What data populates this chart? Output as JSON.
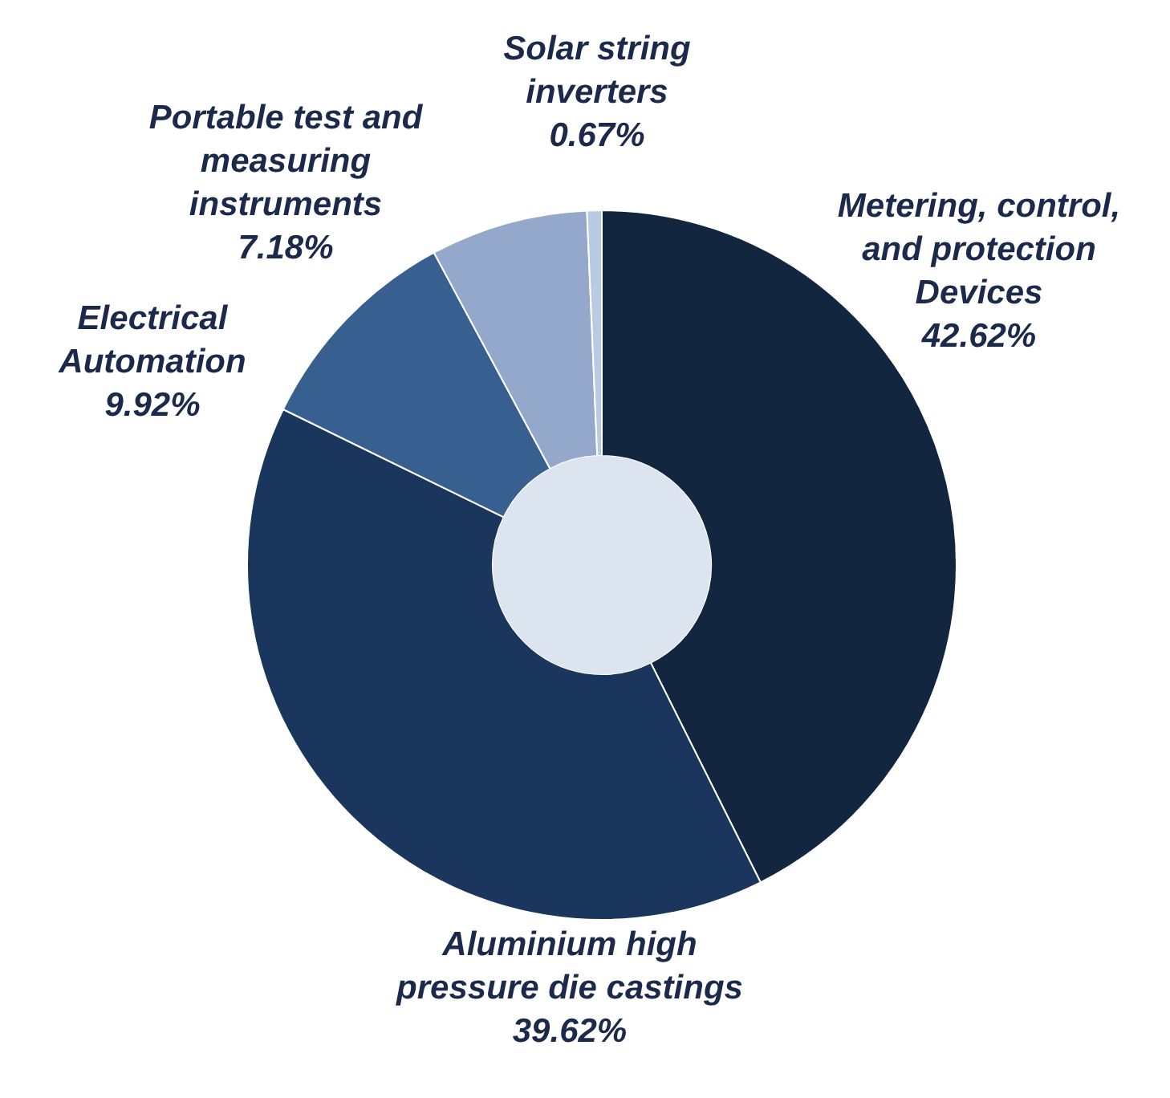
{
  "chart_data": {
    "type": "donut",
    "categories": [
      "Metering, control, and protection Devices",
      "Aluminium high pressure die castings",
      "Electrical Automation",
      "Portable test and measuring instruments",
      "Solar string inverters"
    ],
    "values": [
      42.62,
      39.62,
      9.92,
      7.18,
      0.67
    ],
    "colors": [
      "#13263f",
      "#1b365d",
      "#375f8f",
      "#94a8cc",
      "#b8cbe3"
    ],
    "value_labels": [
      "42.62%",
      "39.62%",
      "9.92%",
      "7.18%",
      "0.67%"
    ],
    "legend": false
  }
}
